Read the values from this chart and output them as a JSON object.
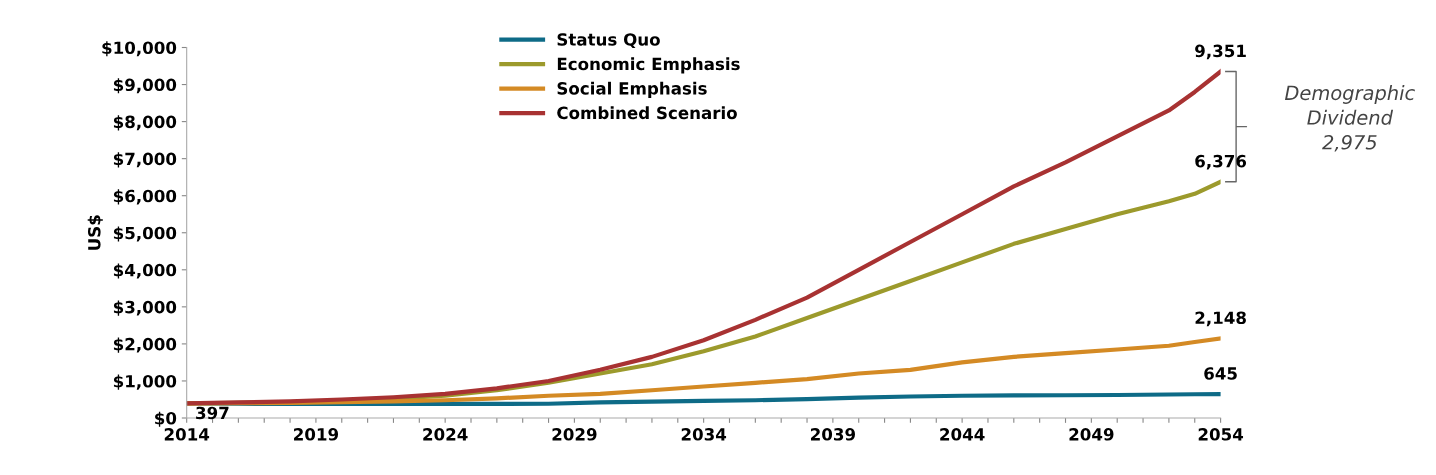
{
  "chart_data": {
    "type": "line",
    "ylabel": "US$",
    "x": [
      2014,
      2016,
      2018,
      2020,
      2022,
      2024,
      2026,
      2028,
      2030,
      2032,
      2034,
      2036,
      2038,
      2040,
      2042,
      2044,
      2046,
      2048,
      2050,
      2052,
      2053,
      2054
    ],
    "xlim": [
      2014,
      2054
    ],
    "xticks": [
      2014,
      {
        "value": 2015,
        "label": null
      },
      {
        "value": 2016,
        "label": null
      },
      {
        "value": 2017,
        "label": null
      },
      {
        "value": 2018,
        "label": null
      },
      2019,
      {
        "value": 2020,
        "label": null
      },
      {
        "value": 2021,
        "label": null
      },
      {
        "value": 2022,
        "label": null
      },
      {
        "value": 2023,
        "label": null
      },
      2024,
      {
        "value": 2025,
        "label": null
      },
      {
        "value": 2026,
        "label": null
      },
      {
        "value": 2027,
        "label": null
      },
      {
        "value": 2028,
        "label": null
      },
      2029,
      {
        "value": 2030,
        "label": null
      },
      {
        "value": 2031,
        "label": null
      },
      {
        "value": 2032,
        "label": null
      },
      {
        "value": 2033,
        "label": null
      },
      2034,
      {
        "value": 2035,
        "label": null
      },
      {
        "value": 2036,
        "label": null
      },
      {
        "value": 2037,
        "label": null
      },
      {
        "value": 2038,
        "label": null
      },
      2039,
      {
        "value": 2040,
        "label": null
      },
      {
        "value": 2041,
        "label": null
      },
      {
        "value": 2042,
        "label": null
      },
      {
        "value": 2043,
        "label": null
      },
      2044,
      {
        "value": 2045,
        "label": null
      },
      {
        "value": 2046,
        "label": null
      },
      {
        "value": 2047,
        "label": null
      },
      {
        "value": 2048,
        "label": null
      },
      2049,
      {
        "value": 2050,
        "label": null
      },
      {
        "value": 2051,
        "label": null
      },
      {
        "value": 2052,
        "label": null
      },
      {
        "value": 2053,
        "label": null
      },
      2054
    ],
    "ylim": [
      0,
      10000
    ],
    "yticks": [
      {
        "value": 0,
        "label": "$0"
      },
      {
        "value": 1000,
        "label": "$1,000"
      },
      {
        "value": 2000,
        "label": "$2,000"
      },
      {
        "value": 3000,
        "label": "$3,000"
      },
      {
        "value": 4000,
        "label": "$4,000"
      },
      {
        "value": 5000,
        "label": "$5,000"
      },
      {
        "value": 6000,
        "label": "$6,000"
      },
      {
        "value": 7000,
        "label": "$7,000"
      },
      {
        "value": 8000,
        "label": "$8,000"
      },
      {
        "value": 9000,
        "label": "$9,000"
      },
      {
        "value": 10000,
        "label": "$10,000"
      }
    ],
    "series": [
      {
        "name": "Status Quo",
        "color": "#0e6b87",
        "values": [
          397,
          385,
          380,
          380,
          380,
          380,
          380,
          385,
          420,
          440,
          460,
          480,
          510,
          550,
          580,
          600,
          610,
          615,
          620,
          635,
          640,
          645
        ],
        "value_labels": [
          "397",
          null,
          null,
          null,
          null,
          null,
          null,
          null,
          null,
          null,
          null,
          null,
          null,
          null,
          null,
          null,
          null,
          null,
          null,
          null,
          null,
          "645"
        ]
      },
      {
        "name": "Economic Emphasis",
        "color": "#9c9a2c",
        "values": [
          397,
          410,
          430,
          470,
          520,
          600,
          750,
          950,
          1200,
          1450,
          1800,
          2200,
          2700,
          3200,
          3700,
          4200,
          4700,
          5100,
          5500,
          5850,
          6050,
          6376
        ],
        "value_labels": [
          null,
          null,
          null,
          null,
          null,
          null,
          null,
          null,
          null,
          null,
          null,
          null,
          null,
          null,
          null,
          null,
          null,
          null,
          null,
          null,
          null,
          "6,376"
        ]
      },
      {
        "name": "Social Emphasis",
        "color": "#d48a24",
        "values": [
          397,
          400,
          410,
          430,
          450,
          480,
          530,
          600,
          650,
          750,
          850,
          950,
          1050,
          1200,
          1300,
          1500,
          1650,
          1750,
          1850,
          1950,
          2050,
          2148
        ],
        "value_labels": [
          null,
          null,
          null,
          null,
          null,
          null,
          null,
          null,
          null,
          null,
          null,
          null,
          null,
          null,
          null,
          null,
          null,
          null,
          null,
          null,
          null,
          "2,148"
        ]
      },
      {
        "name": "Combined Scenario",
        "color": "#a83232",
        "values": [
          397,
          420,
          450,
          500,
          560,
          650,
          800,
          1000,
          1300,
          1650,
          2100,
          2650,
          3250,
          4000,
          4750,
          5500,
          6250,
          6900,
          7600,
          8300,
          8800,
          9351
        ],
        "value_labels": [
          null,
          null,
          null,
          null,
          null,
          null,
          null,
          null,
          null,
          null,
          null,
          null,
          null,
          null,
          null,
          null,
          null,
          null,
          null,
          null,
          null,
          "9,351"
        ]
      }
    ],
    "legend": "top",
    "grid": false,
    "annotations": [
      "Demographic\nDividend\n2,975"
    ]
  }
}
